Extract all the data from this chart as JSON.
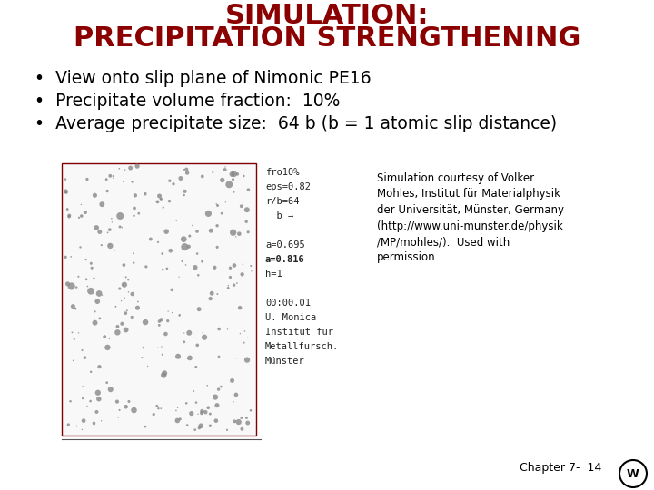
{
  "title_line1": "SIMULATION:",
  "title_line2": "PRECIPITATION STRENGTHENING",
  "title_color": "#8B0000",
  "title_fontsize": 22,
  "bullet_points": [
    "View onto slip plane of Nimonic PE16",
    "Precipitate volume fraction:  10%",
    "Average precipitate size:  64 b (b = 1 atomic slip distance)"
  ],
  "bullet_fontsize": 13.5,
  "bullet_color": "#000000",
  "sim_annotation_lines": [
    "fro10%",
    "eps=0.82",
    "r/b=64",
    "  b →",
    "",
    "a=0.695",
    "a=0.816",
    "h=1",
    "",
    "00:00.01",
    "U. Monica",
    "Institut für",
    "Metallfursch.",
    "Münster"
  ],
  "courtesy_text": "Simulation courtesy of Volker\nMohles, Institut für Materialphysik\nder Universität, Münster, Germany\n(http://www.uni-munster.de/physik\n/MP/mohles/).  Used with\npermission.",
  "chapter_text": "Chapter 7-  14",
  "bg_color": "#FFFFFF",
  "image_border_color": "#800000",
  "dot_color": "#888888",
  "num_dots": 280,
  "seed": 42
}
